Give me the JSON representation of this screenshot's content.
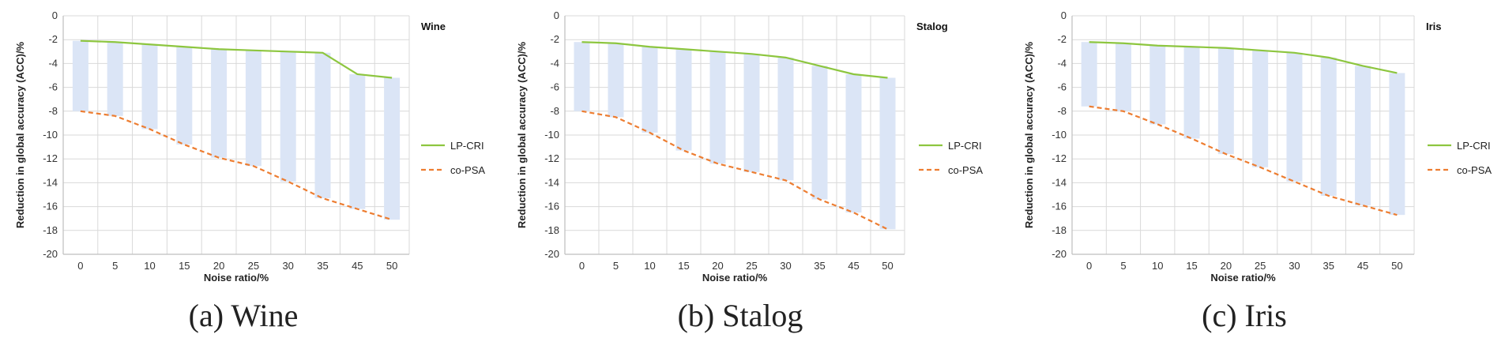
{
  "colors": {
    "lp_cri": "#8dc63f",
    "co_psa": "#ed7d31",
    "gap": "#dbe5f6",
    "grid": "#d9d9d9",
    "axis": "#bfbfbf"
  },
  "chart_data": [
    {
      "type": "line",
      "title": "Wine",
      "caption": "(a) Wine",
      "xlabel": "Noise ratio/%",
      "ylabel": "Reduction in global accuracy (ACC)/%",
      "categories": [
        "0",
        "5",
        "10",
        "15",
        "20",
        "25",
        "30",
        "35",
        "45",
        "50"
      ],
      "ylim": [
        -20,
        0
      ],
      "yticks": [
        "0",
        "-2",
        "-4",
        "-6",
        "-8",
        "-10",
        "-12",
        "-14",
        "-16",
        "-18",
        "-20"
      ],
      "grid": true,
      "legend": "right",
      "series": [
        {
          "name": "LP-CRI",
          "style": "solid",
          "values": [
            -2.1,
            -2.2,
            -2.4,
            -2.6,
            -2.8,
            -2.9,
            -3.0,
            -3.1,
            -4.9,
            -5.2
          ]
        },
        {
          "name": "co-PSA",
          "style": "dashed",
          "values": [
            -8.0,
            -8.4,
            -9.5,
            -10.8,
            -11.9,
            -12.6,
            -13.9,
            -15.3,
            -16.2,
            -17.1
          ]
        }
      ]
    },
    {
      "type": "line",
      "title": "Stalog",
      "caption": "(b) Stalog",
      "xlabel": "Noise ratio/%",
      "ylabel": "Reduction in global accuracy (ACC)/%",
      "categories": [
        "0",
        "5",
        "10",
        "15",
        "20",
        "25",
        "30",
        "35",
        "45",
        "50"
      ],
      "ylim": [
        -20,
        0
      ],
      "yticks": [
        "0",
        "-2",
        "-4",
        "-6",
        "-8",
        "-10",
        "-12",
        "-14",
        "-16",
        "-18",
        "-20"
      ],
      "grid": true,
      "legend": "right",
      "series": [
        {
          "name": "LP-CRI",
          "style": "solid",
          "values": [
            -2.2,
            -2.3,
            -2.6,
            -2.8,
            -3.0,
            -3.2,
            -3.5,
            -4.2,
            -4.9,
            -5.2
          ]
        },
        {
          "name": "co-PSA",
          "style": "dashed",
          "values": [
            -8.0,
            -8.5,
            -9.8,
            -11.3,
            -12.4,
            -13.1,
            -13.8,
            -15.4,
            -16.5,
            -17.9
          ]
        }
      ]
    },
    {
      "type": "line",
      "title": "Iris",
      "caption": "(c) Iris",
      "xlabel": "Noise ratio/%",
      "ylabel": "Reduction in global accuracy (ACC)/%",
      "categories": [
        "0",
        "5",
        "10",
        "15",
        "20",
        "25",
        "30",
        "35",
        "45",
        "50"
      ],
      "ylim": [
        -20,
        0
      ],
      "yticks": [
        "0",
        "-2",
        "-4",
        "-6",
        "-8",
        "-10",
        "-12",
        "-14",
        "-16",
        "-18",
        "-20"
      ],
      "grid": true,
      "legend": "right",
      "series": [
        {
          "name": "LP-CRI",
          "style": "solid",
          "values": [
            -2.2,
            -2.3,
            -2.5,
            -2.6,
            -2.7,
            -2.9,
            -3.1,
            -3.5,
            -4.2,
            -4.8
          ]
        },
        {
          "name": "co-PSA",
          "style": "dashed",
          "values": [
            -7.6,
            -8.0,
            -9.1,
            -10.3,
            -11.6,
            -12.7,
            -13.9,
            -15.1,
            -15.9,
            -16.7
          ]
        }
      ]
    }
  ]
}
